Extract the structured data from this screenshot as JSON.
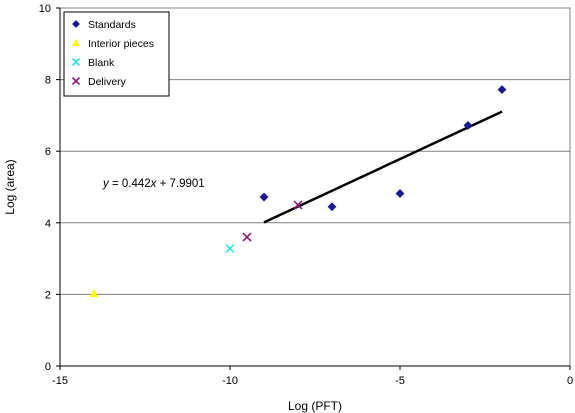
{
  "chart_data": {
    "type": "scatter",
    "xlabel": "Log (PFT)",
    "ylabel": "Log (area)",
    "xlim": [
      -15,
      0
    ],
    "ylim": [
      0,
      10
    ],
    "xticks": [
      -15,
      -10,
      -5,
      0
    ],
    "yticks": [
      0,
      2,
      4,
      6,
      8,
      10
    ],
    "grid": "horizontal",
    "legend_position": "top-left",
    "series": [
      {
        "name": "Standards",
        "marker": "diamond",
        "color": "#1a1a8c",
        "points": [
          [
            -9,
            4.72
          ],
          [
            -7,
            4.45
          ],
          [
            -5,
            4.82
          ],
          [
            -3,
            6.72
          ],
          [
            -2,
            7.72
          ]
        ]
      },
      {
        "name": "Interior pieces",
        "marker": "triangle",
        "color": "#ffff00",
        "points": [
          [
            -14,
            2.02
          ]
        ]
      },
      {
        "name": "Blank",
        "marker": "x",
        "color": "#33e0e6",
        "points": [
          [
            -10,
            3.28
          ]
        ]
      },
      {
        "name": "Delivery",
        "marker": "x",
        "color": "#8c1a7a",
        "points": [
          [
            -9.5,
            3.6
          ],
          [
            -8,
            4.5
          ]
        ]
      }
    ],
    "trendline": {
      "slope": 0.442,
      "intercept": 7.9901,
      "x_range": [
        -9,
        -2
      ],
      "equation": "y = 0.442x + 7.9901"
    }
  }
}
